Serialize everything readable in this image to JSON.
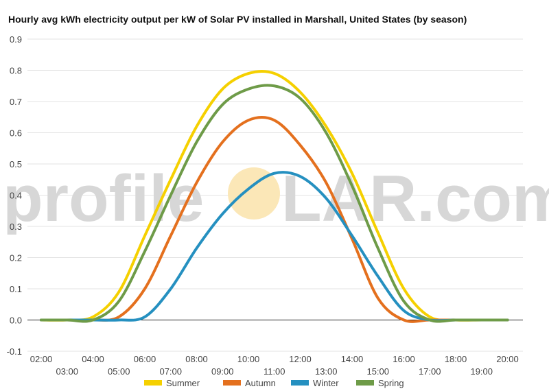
{
  "chart_data": {
    "type": "line",
    "title": "Hourly avg kWh electricity output per kW of Solar PV installed in Marshall, United States (by season)",
    "xlabel": "",
    "ylabel": "",
    "categories": [
      "02:00",
      "03:00",
      "04:00",
      "05:00",
      "06:00",
      "07:00",
      "08:00",
      "09:00",
      "10:00",
      "11:00",
      "12:00",
      "13:00",
      "14:00",
      "15:00",
      "16:00",
      "17:00",
      "18:00",
      "19:00",
      "20:00"
    ],
    "x_tick_labels_row1": [
      "02:00",
      "04:00",
      "06:00",
      "08:00",
      "10:00",
      "12:00",
      "14:00",
      "16:00",
      "18:00",
      "20:00"
    ],
    "x_tick_labels_row2": [
      "03:00",
      "05:00",
      "07:00",
      "09:00",
      "11:00",
      "13:00",
      "15:00",
      "17:00",
      "19:00"
    ],
    "ylim": [
      -0.1,
      0.9
    ],
    "y_ticks": [
      "-0.1",
      "0.0",
      "0.1",
      "0.2",
      "0.3",
      "0.4",
      "0.5",
      "0.6",
      "0.7",
      "0.8",
      "0.9"
    ],
    "grid": true,
    "legend_position": "bottom",
    "series": [
      {
        "name": "Summer",
        "color": "#f5d000",
        "values": [
          0,
          0,
          0.01,
          0.09,
          0.27,
          0.45,
          0.62,
          0.74,
          0.79,
          0.79,
          0.73,
          0.62,
          0.47,
          0.28,
          0.1,
          0.01,
          0,
          0,
          0
        ]
      },
      {
        "name": "Autumn",
        "color": "#e4701e",
        "values": [
          0,
          0,
          0,
          0.01,
          0.1,
          0.27,
          0.44,
          0.57,
          0.64,
          0.64,
          0.56,
          0.44,
          0.26,
          0.07,
          0,
          0,
          0,
          0,
          0
        ]
      },
      {
        "name": "Winter",
        "color": "#2590c0",
        "values": [
          0,
          0,
          0,
          0,
          0.01,
          0.1,
          0.23,
          0.34,
          0.42,
          0.47,
          0.46,
          0.39,
          0.27,
          0.14,
          0.03,
          0,
          0,
          0,
          0
        ]
      },
      {
        "name": "Spring",
        "color": "#6e9b48",
        "values": [
          0,
          0,
          0,
          0.06,
          0.22,
          0.4,
          0.57,
          0.69,
          0.74,
          0.75,
          0.71,
          0.6,
          0.43,
          0.23,
          0.06,
          0,
          0,
          0,
          0
        ]
      }
    ]
  },
  "watermark": {
    "text_left": "profile",
    "text_right": "LAR.com",
    "sun_color": "#fbe7b7"
  }
}
